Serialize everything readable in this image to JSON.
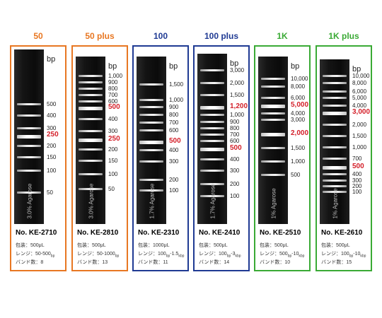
{
  "products": [
    {
      "title": "50",
      "color": "#e87722",
      "model": "No. KE-2710",
      "agarose": "3.0% Agarose",
      "unit": "bp",
      "packing": "包装：500μL",
      "range_prefix": "レンジ：50-500",
      "range_unit": "bp",
      "bands_count": "バンド数：8",
      "markers": [
        {
          "label": "500",
          "y": 78,
          "hl": false
        },
        {
          "label": "400",
          "y": 94,
          "hl": false
        },
        {
          "label": "300",
          "y": 112,
          "hl": false
        },
        {
          "label": "250",
          "y": 122,
          "hl": true
        },
        {
          "label": "200",
          "y": 137,
          "hl": false
        },
        {
          "label": "150",
          "y": 153,
          "hl": false
        },
        {
          "label": "100",
          "y": 172,
          "hl": false
        },
        {
          "label": "50",
          "y": 203,
          "hl": false
        }
      ],
      "bands": [
        {
          "y": 76,
          "b": false
        },
        {
          "y": 92,
          "b": false
        },
        {
          "y": 110,
          "b": false
        },
        {
          "y": 121,
          "b": true
        },
        {
          "y": 135,
          "b": false
        },
        {
          "y": 151,
          "b": false
        },
        {
          "y": 170,
          "b": false
        },
        {
          "y": 201,
          "b": false
        }
      ]
    },
    {
      "title": "50 plus",
      "color": "#e87722",
      "model": "No. KE-2810",
      "agarose": "3.0% Agarose",
      "unit": "bp",
      "packing": "包装：500μL",
      "range_prefix": "レンジ：50-1000",
      "range_unit": "bp",
      "bands_count": "バンド数：13",
      "markers": [
        {
          "label": "1,000",
          "y": 38,
          "hl": false
        },
        {
          "label": "900",
          "y": 47,
          "hl": false
        },
        {
          "label": "800",
          "y": 56,
          "hl": false
        },
        {
          "label": "700",
          "y": 65,
          "hl": false
        },
        {
          "label": "600",
          "y": 74,
          "hl": false
        },
        {
          "label": "500",
          "y": 83,
          "hl": true
        },
        {
          "label": "400",
          "y": 99,
          "hl": false
        },
        {
          "label": "300",
          "y": 116,
          "hl": false
        },
        {
          "label": "250",
          "y": 128,
          "hl": true
        },
        {
          "label": "200",
          "y": 142,
          "hl": false
        },
        {
          "label": "150",
          "y": 158,
          "hl": false
        },
        {
          "label": "100",
          "y": 177,
          "hl": false
        },
        {
          "label": "50",
          "y": 198,
          "hl": false
        }
      ],
      "bands": [
        {
          "y": 36,
          "b": false
        },
        {
          "y": 45,
          "b": false
        },
        {
          "y": 54,
          "b": false
        },
        {
          "y": 63,
          "b": false
        },
        {
          "y": 72,
          "b": false
        },
        {
          "y": 81,
          "b": true
        },
        {
          "y": 97,
          "b": false
        },
        {
          "y": 114,
          "b": false
        },
        {
          "y": 126,
          "b": true
        },
        {
          "y": 140,
          "b": false
        },
        {
          "y": 156,
          "b": false
        },
        {
          "y": 175,
          "b": false
        },
        {
          "y": 196,
          "b": false
        }
      ]
    },
    {
      "title": "100",
      "color": "#1f3a93",
      "model": "No. KE-2310",
      "agarose": "1.7% Agarose",
      "unit": "bp",
      "packing": "包装：1000μL",
      "range_prefix": "レンジ：100",
      "range_unit": "bp",
      "range_suffix": "-1.5",
      "range_unit2": "kbp",
      "bands_count": "バンド数：11",
      "markers": [
        {
          "label": "1,500",
          "y": 50,
          "hl": false
        },
        {
          "label": "1,000",
          "y": 72,
          "hl": false
        },
        {
          "label": "900",
          "y": 82,
          "hl": false
        },
        {
          "label": "800",
          "y": 93,
          "hl": false
        },
        {
          "label": "700",
          "y": 104,
          "hl": false
        },
        {
          "label": "600",
          "y": 115,
          "hl": false
        },
        {
          "label": "500",
          "y": 131,
          "hl": true
        },
        {
          "label": "400",
          "y": 143,
          "hl": false
        },
        {
          "label": "300",
          "y": 159,
          "hl": false
        },
        {
          "label": "200",
          "y": 185,
          "hl": false
        },
        {
          "label": "100",
          "y": 200,
          "hl": false
        }
      ],
      "bands": [
        {
          "y": 48,
          "b": false
        },
        {
          "y": 70,
          "b": false
        },
        {
          "y": 80,
          "b": false
        },
        {
          "y": 91,
          "b": false
        },
        {
          "y": 102,
          "b": false
        },
        {
          "y": 113,
          "b": false
        },
        {
          "y": 129,
          "b": true
        },
        {
          "y": 141,
          "b": false
        },
        {
          "y": 157,
          "b": false
        },
        {
          "y": 183,
          "b": false
        },
        {
          "y": 198,
          "b": false
        }
      ]
    },
    {
      "title": "100 plus",
      "color": "#1f3a93",
      "model": "No. KE-2410",
      "agarose": "1.7% Agarose",
      "unit": "bp",
      "packing": "包装：500μL",
      "range_prefix": "レンジ：100",
      "range_unit": "bp",
      "range_suffix": "-3",
      "range_unit2": "kbp",
      "bands_count": "バンド数：14",
      "markers": [
        {
          "label": "3,000",
          "y": 30,
          "hl": false
        },
        {
          "label": "2,000",
          "y": 48,
          "hl": false
        },
        {
          "label": "1,500",
          "y": 65,
          "hl": false
        },
        {
          "label": "1,200",
          "y": 82,
          "hl": true
        },
        {
          "label": "1,000",
          "y": 93,
          "hl": false
        },
        {
          "label": "900",
          "y": 103,
          "hl": false
        },
        {
          "label": "800",
          "y": 112,
          "hl": false
        },
        {
          "label": "700",
          "y": 121,
          "hl": false
        },
        {
          "label": "600",
          "y": 130,
          "hl": false
        },
        {
          "label": "500",
          "y": 141,
          "hl": true
        },
        {
          "label": "400",
          "y": 156,
          "hl": false
        },
        {
          "label": "300",
          "y": 172,
          "hl": false
        },
        {
          "label": "200",
          "y": 191,
          "hl": false
        },
        {
          "label": "100",
          "y": 208,
          "hl": false
        }
      ],
      "bands": [
        {
          "y": 28,
          "b": false
        },
        {
          "y": 46,
          "b": false
        },
        {
          "y": 63,
          "b": false
        },
        {
          "y": 80,
          "b": true
        },
        {
          "y": 91,
          "b": false
        },
        {
          "y": 101,
          "b": false
        },
        {
          "y": 110,
          "b": false
        },
        {
          "y": 119,
          "b": false
        },
        {
          "y": 128,
          "b": false
        },
        {
          "y": 139,
          "b": true
        },
        {
          "y": 154,
          "b": false
        },
        {
          "y": 170,
          "b": false
        },
        {
          "y": 189,
          "b": false
        },
        {
          "y": 206,
          "b": false
        }
      ]
    },
    {
      "title": "1K",
      "color": "#3aaa35",
      "model": "No. KE-2510",
      "agarose": "1% Agarose",
      "unit": "bp",
      "packing": "包装：500μL",
      "range_prefix": "レンジ：500",
      "range_unit": "bp",
      "range_suffix": "-10",
      "range_unit2": "kbp",
      "bands_count": "バンド数：10",
      "markers": [
        {
          "label": "10,000",
          "y": 42,
          "hl": false
        },
        {
          "label": "8,000",
          "y": 53,
          "hl": false
        },
        {
          "label": "6,000",
          "y": 69,
          "hl": false
        },
        {
          "label": "5,000",
          "y": 80,
          "hl": true
        },
        {
          "label": "4,000",
          "y": 91,
          "hl": false
        },
        {
          "label": "3,000",
          "y": 100,
          "hl": false
        },
        {
          "label": "2,000",
          "y": 120,
          "hl": true
        },
        {
          "label": "1,500",
          "y": 140,
          "hl": false
        },
        {
          "label": "1,000",
          "y": 159,
          "hl": false
        },
        {
          "label": "500",
          "y": 178,
          "hl": false
        }
      ],
      "bands": [
        {
          "y": 40,
          "b": false
        },
        {
          "y": 51,
          "b": false
        },
        {
          "y": 67,
          "b": false
        },
        {
          "y": 78,
          "b": true
        },
        {
          "y": 89,
          "b": false
        },
        {
          "y": 98,
          "b": false
        },
        {
          "y": 118,
          "b": true
        },
        {
          "y": 138,
          "b": false
        },
        {
          "y": 157,
          "b": false
        },
        {
          "y": 176,
          "b": false
        }
      ]
    },
    {
      "title": "1K plus",
      "color": "#3aaa35",
      "model": "No. KE-2610",
      "agarose": "1% Agarose",
      "unit": "bp",
      "packing": "包装：500μL",
      "range_prefix": "レンジ：100",
      "range_unit": "bp",
      "range_suffix": "-10",
      "range_unit2": "kbp",
      "bands_count": "バンド数：15",
      "markers": [
        {
          "label": "10,000",
          "y": 38,
          "hl": false
        },
        {
          "label": "8,000",
          "y": 48,
          "hl": false
        },
        {
          "label": "6,000",
          "y": 60,
          "hl": false
        },
        {
          "label": "5,000",
          "y": 69,
          "hl": false
        },
        {
          "label": "4,000",
          "y": 80,
          "hl": false
        },
        {
          "label": "3,000",
          "y": 90,
          "hl": true
        },
        {
          "label": "2,000",
          "y": 107,
          "hl": false
        },
        {
          "label": "1,500",
          "y": 123,
          "hl": false
        },
        {
          "label": "1,000",
          "y": 139,
          "hl": false
        },
        {
          "label": "700",
          "y": 155,
          "hl": false
        },
        {
          "label": "500",
          "y": 167,
          "hl": true
        },
        {
          "label": "400",
          "y": 177,
          "hl": false
        },
        {
          "label": "300",
          "y": 186,
          "hl": false
        },
        {
          "label": "200",
          "y": 194,
          "hl": false
        },
        {
          "label": "100",
          "y": 202,
          "hl": false
        }
      ],
      "bands": [
        {
          "y": 36,
          "b": false
        },
        {
          "y": 46,
          "b": false
        },
        {
          "y": 58,
          "b": false
        },
        {
          "y": 67,
          "b": false
        },
        {
          "y": 78,
          "b": false
        },
        {
          "y": 88,
          "b": true
        },
        {
          "y": 105,
          "b": false
        },
        {
          "y": 121,
          "b": false
        },
        {
          "y": 137,
          "b": false
        },
        {
          "y": 153,
          "b": false
        },
        {
          "y": 165,
          "b": true
        },
        {
          "y": 175,
          "b": false
        },
        {
          "y": 184,
          "b": false
        },
        {
          "y": 192,
          "b": false
        },
        {
          "y": 200,
          "b": false
        }
      ]
    }
  ]
}
